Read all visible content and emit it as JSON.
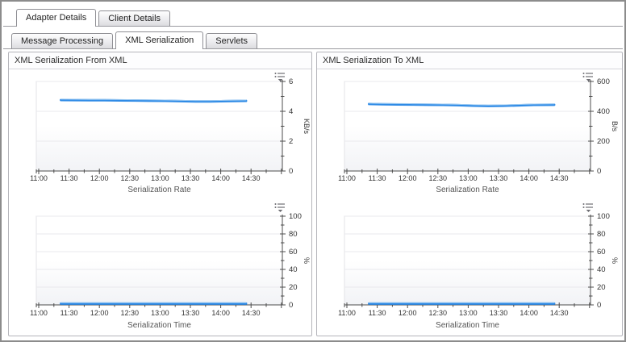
{
  "tabs_primary": {
    "items": [
      {
        "label": "Adapter Details",
        "active": true
      },
      {
        "label": "Client Details",
        "active": false
      }
    ]
  },
  "tabs_secondary": {
    "items": [
      {
        "label": "Message Processing",
        "active": false
      },
      {
        "label": "XML Serialization",
        "active": true
      },
      {
        "label": "Servlets",
        "active": false
      }
    ]
  },
  "panels": [
    {
      "title": "XML Serialization From XML"
    },
    {
      "title": "XML Serialization To XML"
    }
  ],
  "icons": {
    "legend_options": "legend-options-icon"
  },
  "colors": {
    "line_blue": "#2f8be6",
    "line_highlight": "#9ccaf2",
    "axis": "#4c4c4c",
    "grid": "#e9e9ed",
    "plot_border": "#e3e3e7",
    "plot_fade": "#f2f3f6",
    "tick_text": "#333333",
    "axis_title_text": "#555555"
  },
  "chart_data": [
    {
      "type": "line",
      "panel": 0,
      "slot": "top",
      "title": "Serialization Rate",
      "unit": "KB/s",
      "ylim": [
        0,
        6
      ],
      "yticks": [
        0,
        2,
        4,
        6
      ],
      "grid": true,
      "x_tick_labels": [
        "11:00",
        "11:30",
        "12:00",
        "12:30",
        "13:00",
        "13:30",
        "14:00",
        "14:30"
      ],
      "series": [
        {
          "x": [
            "11:22",
            "11:35",
            "11:50",
            "12:05",
            "12:20",
            "12:35",
            "12:50",
            "13:05",
            "13:20",
            "13:35",
            "13:50",
            "14:05",
            "14:25"
          ],
          "values": [
            4.76,
            4.75,
            4.74,
            4.74,
            4.73,
            4.72,
            4.71,
            4.7,
            4.68,
            4.66,
            4.66,
            4.68,
            4.7
          ]
        }
      ]
    },
    {
      "type": "line",
      "panel": 0,
      "slot": "bottom",
      "title": "Serialization Time",
      "unit": "%",
      "ylim": [
        0,
        100
      ],
      "yticks": [
        0,
        20,
        40,
        60,
        80,
        100
      ],
      "grid": true,
      "x_tick_labels": [
        "11:00",
        "11:30",
        "12:00",
        "12:30",
        "13:00",
        "13:30",
        "14:00",
        "14:30"
      ],
      "series": [
        {
          "x": [
            "11:22",
            "11:35",
            "11:50",
            "12:05",
            "12:20",
            "12:35",
            "12:50",
            "13:05",
            "13:20",
            "13:35",
            "13:50",
            "14:05",
            "14:25"
          ],
          "values": [
            1.5,
            1.5,
            1.5,
            1.5,
            1.5,
            1.5,
            1.5,
            1.5,
            1.5,
            1.5,
            1.5,
            1.5,
            1.5
          ]
        }
      ]
    },
    {
      "type": "line",
      "panel": 1,
      "slot": "top",
      "title": "Serialization Rate",
      "unit": "B/s",
      "ylim": [
        0,
        600
      ],
      "yticks": [
        0,
        200,
        400,
        600
      ],
      "grid": true,
      "x_tick_labels": [
        "11:00",
        "11:30",
        "12:00",
        "12:30",
        "13:00",
        "13:30",
        "14:00",
        "14:30"
      ],
      "series": [
        {
          "x": [
            "11:22",
            "11:35",
            "11:50",
            "12:05",
            "12:20",
            "12:35",
            "12:50",
            "13:05",
            "13:20",
            "13:35",
            "13:50",
            "14:05",
            "14:25"
          ],
          "values": [
            449,
            447,
            446,
            445,
            444,
            443,
            441,
            438,
            436,
            437,
            440,
            443,
            444
          ]
        }
      ]
    },
    {
      "type": "line",
      "panel": 1,
      "slot": "bottom",
      "title": "Serialization Time",
      "unit": "%",
      "ylim": [
        0,
        100
      ],
      "yticks": [
        0,
        20,
        40,
        60,
        80,
        100
      ],
      "grid": true,
      "x_tick_labels": [
        "11:00",
        "11:30",
        "12:00",
        "12:30",
        "13:00",
        "13:30",
        "14:00",
        "14:30"
      ],
      "series": [
        {
          "x": [
            "11:22",
            "11:35",
            "11:50",
            "12:05",
            "12:20",
            "12:35",
            "12:50",
            "13:05",
            "13:20",
            "13:35",
            "13:50",
            "14:05",
            "14:25"
          ],
          "values": [
            1.5,
            1.5,
            1.5,
            1.5,
            1.5,
            1.5,
            1.5,
            1.5,
            1.5,
            1.5,
            1.5,
            1.5,
            1.5
          ]
        }
      ]
    }
  ]
}
